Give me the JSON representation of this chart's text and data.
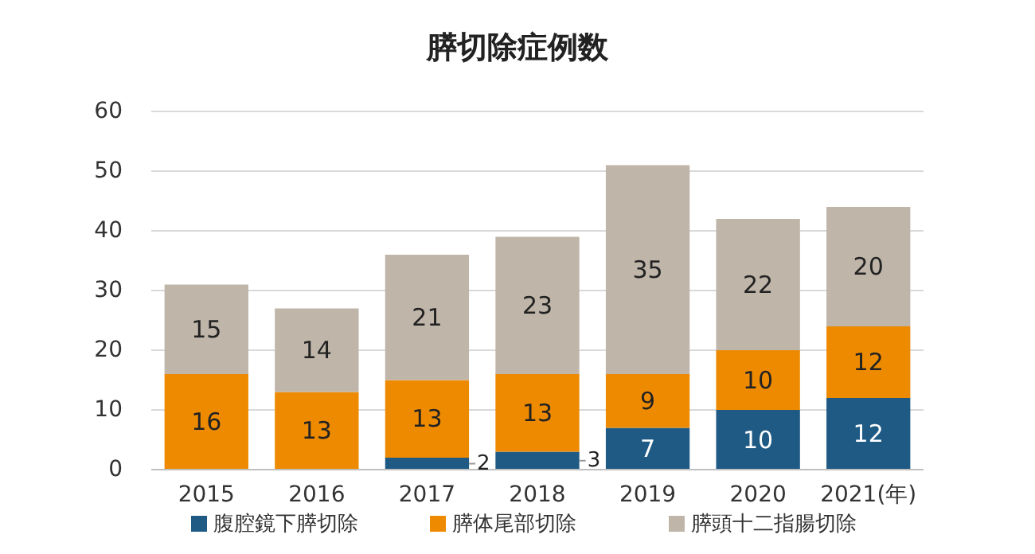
{
  "chart_data": {
    "type": "bar",
    "title": "膵切除症例数",
    "stacked": true,
    "categories": [
      "2015",
      "2016",
      "2017",
      "2018",
      "2019",
      "2020",
      "2021(年)"
    ],
    "series": [
      {
        "name": "腹腔鏡下膵切除",
        "color": "#1f5a85",
        "values": [
          null,
          null,
          2,
          3,
          7,
          10,
          12
        ]
      },
      {
        "name": "膵体尾部切除",
        "color": "#ee8a00",
        "values": [
          16,
          13,
          13,
          13,
          9,
          10,
          12
        ]
      },
      {
        "name": "膵頭十二指腸切除",
        "color": "#bfb5a9",
        "values": [
          15,
          14,
          21,
          23,
          35,
          22,
          20
        ]
      }
    ],
    "ylim": [
      0,
      60
    ],
    "yticks": [
      0,
      10,
      20,
      30,
      40,
      50,
      60
    ],
    "grid": "y",
    "legend": "bottom",
    "data_labels": true
  }
}
